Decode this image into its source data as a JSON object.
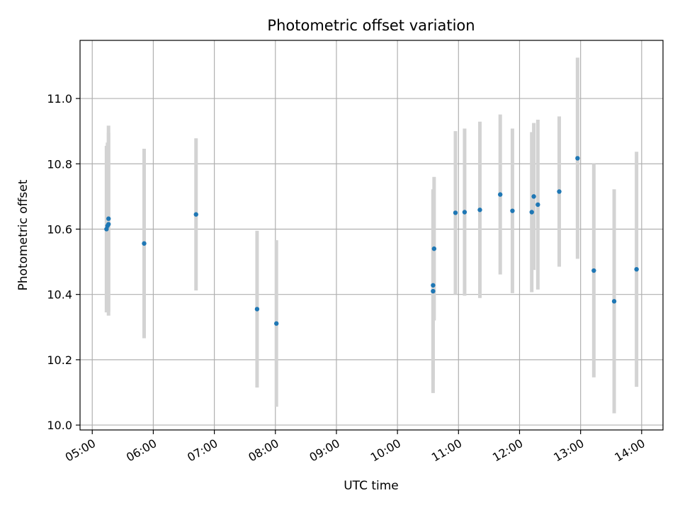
{
  "chart_data": {
    "type": "scatter",
    "title": "Photometric offset variation",
    "xlabel": "UTC time",
    "ylabel": "Photometric offset",
    "xlim": [
      "04:48",
      "14:21"
    ],
    "ylim": [
      9.985,
      11.178
    ],
    "x_ticks": [
      "05:00",
      "06:00",
      "07:00",
      "08:00",
      "09:00",
      "10:00",
      "11:00",
      "12:00",
      "13:00",
      "14:00"
    ],
    "y_ticks": [
      10.0,
      10.2,
      10.4,
      10.6,
      10.8,
      11.0
    ],
    "grid": true,
    "marker_color": "#1f77b4",
    "errorbar_color": "#d3d3d3",
    "points": [
      {
        "time": "05:14",
        "y": 10.6,
        "err": 0.255
      },
      {
        "time": "05:15",
        "y": 10.61,
        "err": 0.255
      },
      {
        "time": "05:16",
        "y": 10.615,
        "err": 0.28
      },
      {
        "time": "05:16",
        "y": 10.632,
        "err": 0.285
      },
      {
        "time": "05:51",
        "y": 10.556,
        "err": 0.29
      },
      {
        "time": "06:42",
        "y": 10.645,
        "err": 0.233
      },
      {
        "time": "07:42",
        "y": 10.355,
        "err": 0.24
      },
      {
        "time": "08:01",
        "y": 10.311,
        "err": 0.255
      },
      {
        "time": "10:35",
        "y": 10.41,
        "err": 0.312
      },
      {
        "time": "10:35",
        "y": 10.428,
        "err": 0.29
      },
      {
        "time": "10:36",
        "y": 10.54,
        "err": 0.22
      },
      {
        "time": "10:57",
        "y": 10.65,
        "err": 0.25
      },
      {
        "time": "11:06",
        "y": 10.652,
        "err": 0.256
      },
      {
        "time": "11:21",
        "y": 10.659,
        "err": 0.27
      },
      {
        "time": "11:41",
        "y": 10.706,
        "err": 0.245
      },
      {
        "time": "11:53",
        "y": 10.656,
        "err": 0.252
      },
      {
        "time": "12:12",
        "y": 10.652,
        "err": 0.245
      },
      {
        "time": "12:14",
        "y": 10.7,
        "err": 0.225
      },
      {
        "time": "12:18",
        "y": 10.675,
        "err": 0.26
      },
      {
        "time": "12:39",
        "y": 10.715,
        "err": 0.23
      },
      {
        "time": "12:57",
        "y": 10.817,
        "err": 0.308
      },
      {
        "time": "13:13",
        "y": 10.473,
        "err": 0.327
      },
      {
        "time": "13:33",
        "y": 10.379,
        "err": 0.343
      },
      {
        "time": "13:55",
        "y": 10.477,
        "err": 0.36
      }
    ]
  }
}
